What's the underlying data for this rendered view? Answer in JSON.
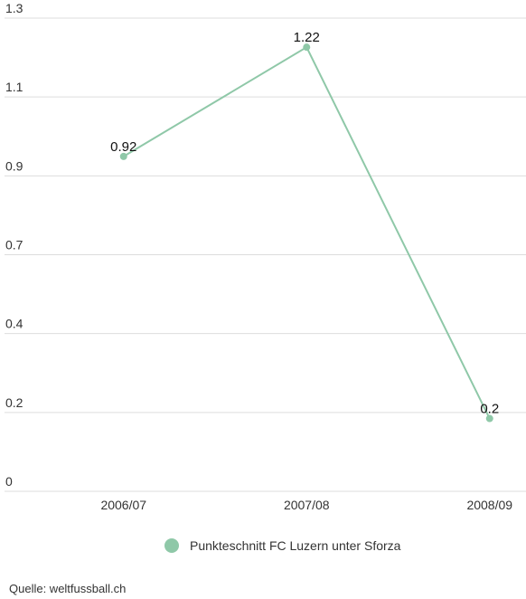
{
  "chart_data": {
    "type": "line",
    "categories": [
      "2006/07",
      "2007/08",
      "2008/09"
    ],
    "series": [
      {
        "name": "Punkteschnitt FC Luzern unter Sforza",
        "color": "#8fc8a8",
        "values": [
          0.92,
          1.22,
          0.2
        ]
      }
    ],
    "ylim": [
      0,
      1.3
    ],
    "yticks": [
      0,
      {
        "value": 0.2167,
        "label": "0.2"
      },
      {
        "value": 0.4333,
        "label": "0.4"
      },
      {
        "value": 0.65,
        "label": "0.7"
      },
      {
        "value": 0.8667,
        "label": "0.9"
      },
      {
        "value": 1.0833,
        "label": "1.1"
      },
      1.3
    ],
    "grid": true,
    "source": "Quelle: weltfussball.ch"
  }
}
